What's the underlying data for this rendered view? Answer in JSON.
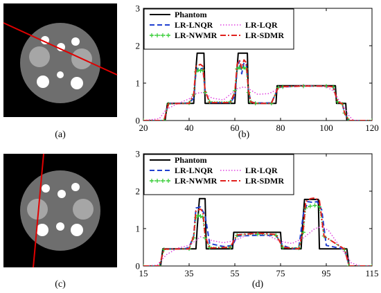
{
  "figure": {
    "captions": [
      "(a)",
      "(b)",
      "(c)",
      "(d)"
    ]
  },
  "chart_data": [
    {
      "type": "line",
      "panel_label": "(b)",
      "xlim": [
        20,
        120
      ],
      "ylim": [
        0,
        3
      ],
      "xticks": [
        20,
        40,
        60,
        80,
        100,
        120
      ],
      "yticks": [
        0,
        1,
        2,
        3
      ],
      "legend_position": "top",
      "series": [
        {
          "name": "Phantom",
          "color": "#000000",
          "dash": "solid",
          "x": [
            20,
            29.5,
            30.5,
            42,
            42.5,
            43.5,
            46.5,
            47,
            60,
            60.5,
            61.5,
            65.5,
            66,
            78,
            78.5,
            104,
            104.5,
            108.5,
            109,
            120
          ],
          "y": [
            0,
            0,
            0.46,
            0.46,
            1.0,
            1.8,
            1.8,
            0.46,
            0.46,
            1.0,
            1.8,
            1.8,
            0.46,
            0.46,
            0.93,
            0.93,
            0.46,
            0.46,
            0,
            0
          ]
        },
        {
          "name": "LR-LNQR",
          "color": "#1f3fd0",
          "dash": "dashed",
          "x": [
            20,
            29,
            31,
            40,
            42,
            43,
            44,
            45,
            46,
            47,
            49,
            58,
            60,
            61,
            62,
            63,
            64,
            65,
            66,
            67,
            69,
            76,
            79,
            81,
            90,
            100,
            103,
            105,
            107,
            108,
            110,
            120
          ],
          "y": [
            0,
            0,
            0.45,
            0.47,
            0.6,
            1.3,
            1.42,
            1.38,
            1.4,
            0.8,
            0.48,
            0.48,
            0.65,
            1.35,
            1.6,
            1.25,
            1.55,
            1.5,
            0.8,
            0.5,
            0.47,
            0.47,
            0.88,
            0.9,
            0.92,
            0.92,
            0.9,
            0.5,
            0.45,
            0.2,
            0,
            0
          ]
        },
        {
          "name": "LR-LQR",
          "color": "#e040e0",
          "dash": "dotted",
          "x": [
            20,
            27,
            30,
            35,
            40,
            43,
            45,
            47,
            50,
            55,
            58,
            61,
            64,
            66,
            70,
            75,
            80,
            90,
            100,
            103,
            106,
            108,
            110,
            112,
            120
          ],
          "y": [
            0,
            0.05,
            0.3,
            0.45,
            0.58,
            0.72,
            0.75,
            0.72,
            0.6,
            0.55,
            0.7,
            0.85,
            0.9,
            0.85,
            0.7,
            0.72,
            0.88,
            0.94,
            0.9,
            0.8,
            0.5,
            0.35,
            0.12,
            0,
            0
          ]
        },
        {
          "name": "LR-NWMR",
          "color": "#33cc33",
          "dash": "plus",
          "x": [
            20,
            29,
            31,
            40,
            42,
            43,
            44,
            45,
            46,
            47,
            49,
            58,
            60,
            61,
            62,
            63,
            64,
            65,
            66,
            67,
            69,
            76,
            79,
            81,
            90,
            100,
            103,
            105,
            107,
            108,
            110,
            120
          ],
          "y": [
            0,
            0,
            0.44,
            0.47,
            0.7,
            1.3,
            1.35,
            1.33,
            1.35,
            0.75,
            0.5,
            0.5,
            0.8,
            1.38,
            1.42,
            1.4,
            1.42,
            1.38,
            0.75,
            0.5,
            0.46,
            0.46,
            0.88,
            0.9,
            0.92,
            0.92,
            0.9,
            0.5,
            0.44,
            0.2,
            0,
            0
          ]
        },
        {
          "name": "LR-SDMR",
          "color": "#e0201c",
          "dash": "dashdot",
          "x": [
            20,
            29,
            31,
            40,
            42,
            43,
            44,
            45,
            46,
            47,
            49,
            58,
            60,
            61,
            62,
            63,
            64,
            65,
            66,
            67,
            69,
            76,
            79,
            81,
            90,
            100,
            103,
            105,
            107,
            108,
            110,
            120
          ],
          "y": [
            0,
            0,
            0.45,
            0.46,
            0.7,
            1.45,
            1.48,
            1.5,
            1.45,
            0.8,
            0.48,
            0.48,
            0.75,
            1.5,
            1.62,
            1.4,
            1.62,
            1.55,
            0.8,
            0.5,
            0.46,
            0.46,
            0.89,
            0.91,
            0.92,
            0.92,
            0.9,
            0.5,
            0.45,
            0.2,
            0,
            0
          ]
        }
      ]
    },
    {
      "type": "line",
      "panel_label": "(d)",
      "xlim": [
        15,
        115
      ],
      "ylim": [
        0,
        3
      ],
      "xticks": [
        15,
        35,
        55,
        75,
        95,
        115
      ],
      "yticks": [
        0,
        1,
        2,
        3
      ],
      "legend_position": "top",
      "series": [
        {
          "name": "Phantom",
          "color": "#000000",
          "dash": "solid",
          "x": [
            15,
            22.5,
            23.5,
            38,
            38.5,
            39.5,
            42,
            42.5,
            54,
            54.5,
            75,
            75.5,
            84,
            84.5,
            85.5,
            91.5,
            92,
            104,
            105,
            115
          ],
          "y": [
            0,
            0,
            0.46,
            0.46,
            1.0,
            1.8,
            1.8,
            0.46,
            0.46,
            0.9,
            0.9,
            0.46,
            0.46,
            1.0,
            1.78,
            1.78,
            0.46,
            0.46,
            0,
            0
          ]
        },
        {
          "name": "LR-LNQR",
          "color": "#1f3fd0",
          "dash": "dashed",
          "x": [
            15,
            22,
            24,
            33,
            35,
            37,
            38,
            40,
            42,
            44,
            50,
            54,
            56,
            65,
            73,
            76,
            80,
            83,
            85,
            87,
            89,
            91,
            93,
            95,
            103,
            105,
            115
          ],
          "y": [
            0,
            0,
            0.45,
            0.46,
            0.5,
            0.8,
            1.55,
            1.58,
            1.35,
            0.6,
            0.52,
            0.55,
            0.8,
            0.82,
            0.82,
            0.55,
            0.46,
            0.5,
            1.4,
            1.72,
            1.7,
            1.72,
            1.5,
            0.55,
            0.45,
            0,
            0
          ]
        },
        {
          "name": "LR-LQR",
          "color": "#e040e0",
          "dash": "dotted",
          "x": [
            15,
            21,
            25,
            30,
            35,
            40,
            45,
            50,
            55,
            60,
            65,
            70,
            75,
            80,
            85,
            90,
            93,
            96,
            100,
            103,
            106,
            110,
            115
          ],
          "y": [
            0,
            0.02,
            0.3,
            0.48,
            0.55,
            0.78,
            0.68,
            0.62,
            0.68,
            0.82,
            0.88,
            0.8,
            0.66,
            0.6,
            0.75,
            1.0,
            1.05,
            0.95,
            0.6,
            0.35,
            0.08,
            0,
            0
          ]
        },
        {
          "name": "LR-NWMR",
          "color": "#33cc33",
          "dash": "plus",
          "x": [
            15,
            22,
            24,
            35,
            37,
            38,
            39,
            40,
            41,
            42,
            44,
            53,
            56,
            65,
            73,
            76,
            83,
            85,
            86,
            88,
            90,
            92,
            94,
            103,
            105,
            115
          ],
          "y": [
            0,
            0,
            0.44,
            0.46,
            0.75,
            1.3,
            1.35,
            1.33,
            1.3,
            0.75,
            0.5,
            0.5,
            0.82,
            0.85,
            0.82,
            0.5,
            0.48,
            0.9,
            1.55,
            1.6,
            1.62,
            1.58,
            0.8,
            0.44,
            0,
            0
          ]
        },
        {
          "name": "LR-SDMR",
          "color": "#e0201c",
          "dash": "dashdot",
          "x": [
            15,
            22,
            24,
            35,
            37,
            38,
            39,
            40,
            41,
            42,
            44,
            53,
            56,
            65,
            73,
            76,
            83,
            85,
            86,
            88,
            90,
            92,
            94,
            103,
            105,
            115
          ],
          "y": [
            0,
            0,
            0.45,
            0.46,
            0.8,
            1.48,
            1.5,
            1.52,
            1.45,
            0.8,
            0.48,
            0.5,
            0.83,
            0.88,
            0.84,
            0.5,
            0.46,
            1.0,
            1.72,
            1.8,
            1.82,
            1.75,
            0.8,
            0.45,
            0,
            0
          ]
        }
      ]
    }
  ]
}
